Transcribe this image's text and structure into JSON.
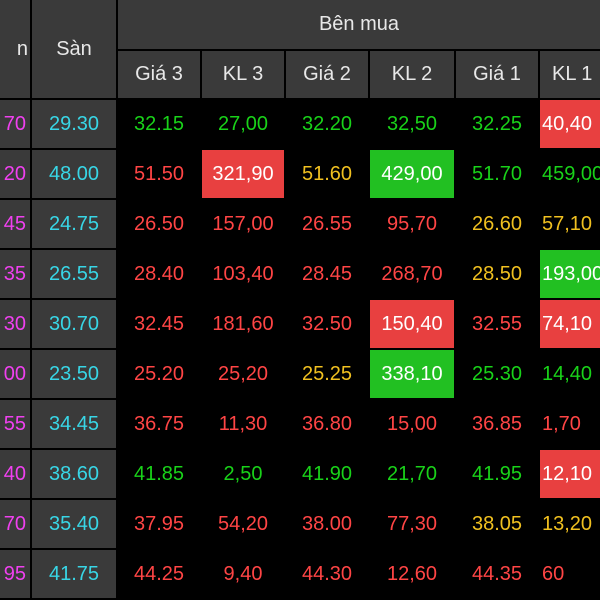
{
  "colors": {
    "green": "#19d219",
    "red": "#ff4545",
    "yellow": "#f0c020",
    "magenta": "#f040f0",
    "cyan": "#38d6e6",
    "white": "#ffffff",
    "red_bg": "#e84040",
    "green_bg": "#22c022"
  },
  "header": {
    "group_label": "Bên mua",
    "col_prev_partial": "n",
    "col_floor": "Sàn",
    "col_price3": "Giá 3",
    "col_vol3": "KL 3",
    "col_price2": "Giá 2",
    "col_vol2": "KL 2",
    "col_price1": "Giá 1",
    "col_vol1_partial": "KL 1"
  },
  "rows": [
    {
      "c0": {
        "t": "70",
        "c": "magenta"
      },
      "floor": "29.30",
      "p3": {
        "t": "32.15",
        "c": "green"
      },
      "v3": {
        "t": "27,00",
        "c": "green"
      },
      "p2": {
        "t": "32.20",
        "c": "green"
      },
      "v2": {
        "t": "32,50",
        "c": "green"
      },
      "p1": {
        "t": "32.25",
        "c": "green"
      },
      "v1": {
        "t": "40,40",
        "c": "white",
        "bg": "red_bg"
      }
    },
    {
      "c0": {
        "t": "20",
        "c": "magenta"
      },
      "floor": "48.00",
      "p3": {
        "t": "51.50",
        "c": "red"
      },
      "v3": {
        "t": "321,90",
        "c": "white",
        "bg": "red_bg"
      },
      "p2": {
        "t": "51.60",
        "c": "yellow"
      },
      "v2": {
        "t": "429,00",
        "c": "white",
        "bg": "green_bg"
      },
      "p1": {
        "t": "51.70",
        "c": "green"
      },
      "v1": {
        "t": "459,00",
        "c": "green"
      }
    },
    {
      "c0": {
        "t": "45",
        "c": "magenta"
      },
      "floor": "24.75",
      "p3": {
        "t": "26.50",
        "c": "red"
      },
      "v3": {
        "t": "157,00",
        "c": "red"
      },
      "p2": {
        "t": "26.55",
        "c": "red"
      },
      "v2": {
        "t": "95,70",
        "c": "red"
      },
      "p1": {
        "t": "26.60",
        "c": "yellow"
      },
      "v1": {
        "t": "57,10",
        "c": "yellow"
      }
    },
    {
      "c0": {
        "t": "35",
        "c": "magenta"
      },
      "floor": "26.55",
      "p3": {
        "t": "28.40",
        "c": "red"
      },
      "v3": {
        "t": "103,40",
        "c": "red"
      },
      "p2": {
        "t": "28.45",
        "c": "red"
      },
      "v2": {
        "t": "268,70",
        "c": "red"
      },
      "p1": {
        "t": "28.50",
        "c": "yellow"
      },
      "v1": {
        "t": "193,00",
        "c": "white",
        "bg": "green_bg"
      }
    },
    {
      "c0": {
        "t": "30",
        "c": "magenta"
      },
      "floor": "30.70",
      "p3": {
        "t": "32.45",
        "c": "red"
      },
      "v3": {
        "t": "181,60",
        "c": "red"
      },
      "p2": {
        "t": "32.50",
        "c": "red"
      },
      "v2": {
        "t": "150,40",
        "c": "white",
        "bg": "red_bg"
      },
      "p1": {
        "t": "32.55",
        "c": "red"
      },
      "v1": {
        "t": "74,10",
        "c": "white",
        "bg": "red_bg"
      }
    },
    {
      "c0": {
        "t": "00",
        "c": "magenta"
      },
      "floor": "23.50",
      "p3": {
        "t": "25.20",
        "c": "red"
      },
      "v3": {
        "t": "25,20",
        "c": "red"
      },
      "p2": {
        "t": "25.25",
        "c": "yellow"
      },
      "v2": {
        "t": "338,10",
        "c": "white",
        "bg": "green_bg"
      },
      "p1": {
        "t": "25.30",
        "c": "green"
      },
      "v1": {
        "t": "14,40",
        "c": "green"
      }
    },
    {
      "c0": {
        "t": "55",
        "c": "magenta"
      },
      "floor": "34.45",
      "p3": {
        "t": "36.75",
        "c": "red"
      },
      "v3": {
        "t": "11,30",
        "c": "red"
      },
      "p2": {
        "t": "36.80",
        "c": "red"
      },
      "v2": {
        "t": "15,00",
        "c": "red"
      },
      "p1": {
        "t": "36.85",
        "c": "red"
      },
      "v1": {
        "t": "1,70",
        "c": "red"
      }
    },
    {
      "c0": {
        "t": "40",
        "c": "magenta"
      },
      "floor": "38.60",
      "p3": {
        "t": "41.85",
        "c": "green"
      },
      "v3": {
        "t": "2,50",
        "c": "green"
      },
      "p2": {
        "t": "41.90",
        "c": "green"
      },
      "v2": {
        "t": "21,70",
        "c": "green"
      },
      "p1": {
        "t": "41.95",
        "c": "green"
      },
      "v1": {
        "t": "12,10",
        "c": "white",
        "bg": "red_bg"
      }
    },
    {
      "c0": {
        "t": "70",
        "c": "magenta"
      },
      "floor": "35.40",
      "p3": {
        "t": "37.95",
        "c": "red"
      },
      "v3": {
        "t": "54,20",
        "c": "red"
      },
      "p2": {
        "t": "38.00",
        "c": "red"
      },
      "v2": {
        "t": "77,30",
        "c": "red"
      },
      "p1": {
        "t": "38.05",
        "c": "yellow"
      },
      "v1": {
        "t": "13,20",
        "c": "yellow"
      }
    },
    {
      "c0": {
        "t": "95",
        "c": "magenta"
      },
      "floor": "41.75",
      "p3": {
        "t": "44.25",
        "c": "red"
      },
      "v3": {
        "t": "9,40",
        "c": "red"
      },
      "p2": {
        "t": "44.30",
        "c": "red"
      },
      "v2": {
        "t": "12,60",
        "c": "red"
      },
      "p1": {
        "t": "44.35",
        "c": "red"
      },
      "v1": {
        "t": "60",
        "c": "red"
      }
    }
  ]
}
